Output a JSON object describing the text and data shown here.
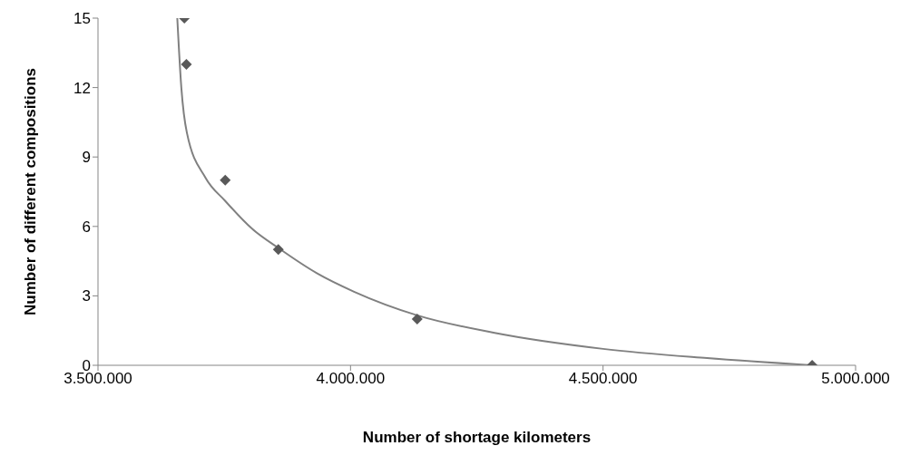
{
  "chart_data": {
    "type": "scatter",
    "xlabel": "Number of shortage kilometers",
    "ylabel": "Number of different compositions",
    "xlim": [
      3500000,
      5000000
    ],
    "xticks": [
      {
        "value": 3500000,
        "label": "3.500.000"
      },
      {
        "value": 4000000,
        "label": "4.000.000"
      },
      {
        "value": 4500000,
        "label": "4.500.000"
      },
      {
        "value": 5000000,
        "label": "5.000.000"
      }
    ],
    "ylim": [
      0,
      15
    ],
    "yticks": [
      0,
      3,
      6,
      9,
      12,
      15
    ],
    "grid": false,
    "legend": false,
    "marker": "diamond",
    "series": [
      {
        "color": "#595959",
        "x": [
          3671000,
          3675000,
          3752000,
          3857000,
          4132000,
          4914000
        ],
        "values": [
          15,
          13,
          8,
          5,
          2,
          0
        ]
      },
      {
        "type": "line",
        "color": "#808080",
        "marker": "none",
        "x": [
          3657000,
          3665000,
          3676000,
          3713000,
          3752000,
          3805000,
          3857000,
          3934000,
          4007000,
          4132000,
          4283000,
          4500000,
          4706000,
          4914000
        ],
        "values": [
          15,
          12.0,
          10.05,
          8.1,
          7.1,
          5.9,
          5.07,
          3.97,
          3.18,
          2.16,
          1.41,
          0.71,
          0.31,
          0
        ]
      }
    ]
  }
}
